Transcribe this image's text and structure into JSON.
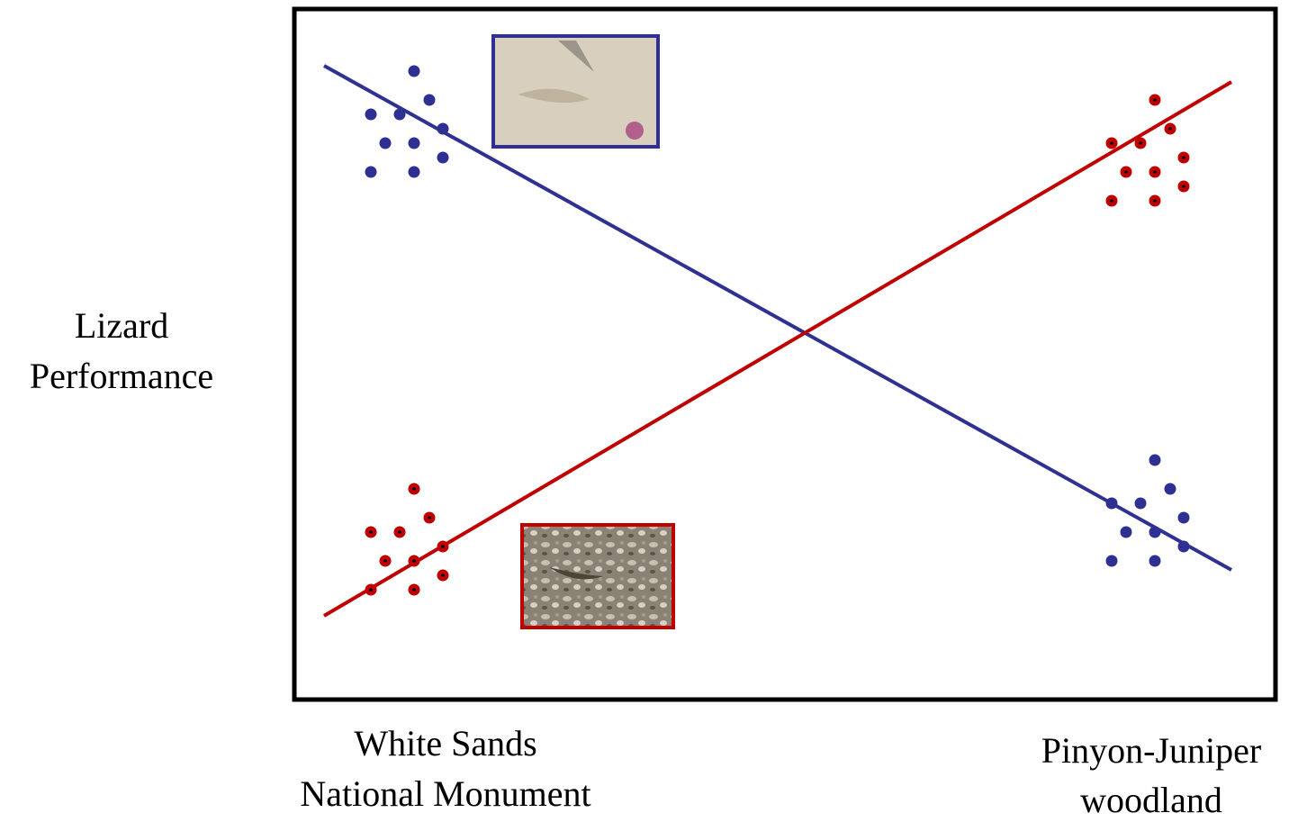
{
  "y_label": [
    "Lizard",
    "Performance"
  ],
  "left_habitat": [
    "White Sands",
    "National Monument"
  ],
  "right_habitat": [
    "Pinyon-Juniper",
    "woodland"
  ]
}
